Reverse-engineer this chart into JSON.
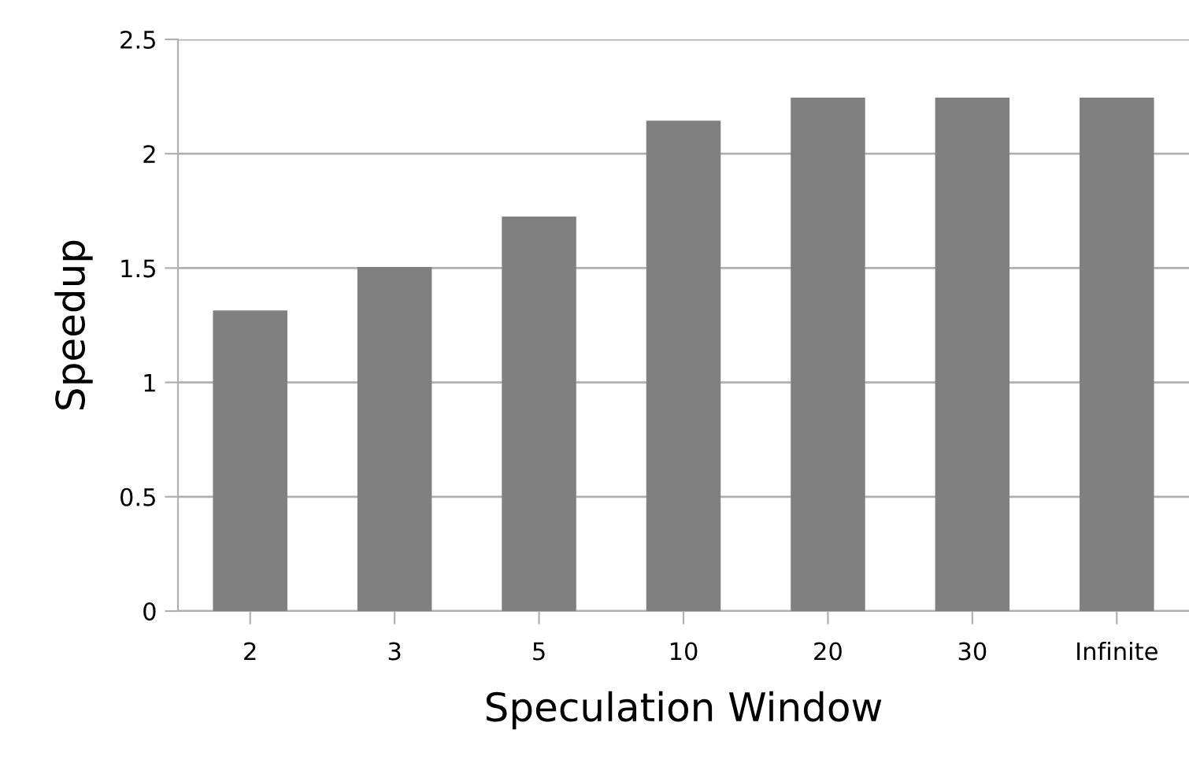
{
  "chart_data": {
    "type": "bar",
    "xlabel": "Speculation Window",
    "ylabel": "Speedup",
    "categories": [
      "2",
      "3",
      "5",
      "10",
      "20",
      "30",
      "Infinite"
    ],
    "values": [
      1.31,
      1.5,
      1.72,
      2.14,
      2.24,
      2.24,
      2.24
    ],
    "color": "#808080",
    "ylim": [
      0,
      2.5
    ],
    "yticks": [
      0,
      0.5,
      1,
      1.5,
      2,
      2.5
    ],
    "grid": "y",
    "legend": false
  }
}
